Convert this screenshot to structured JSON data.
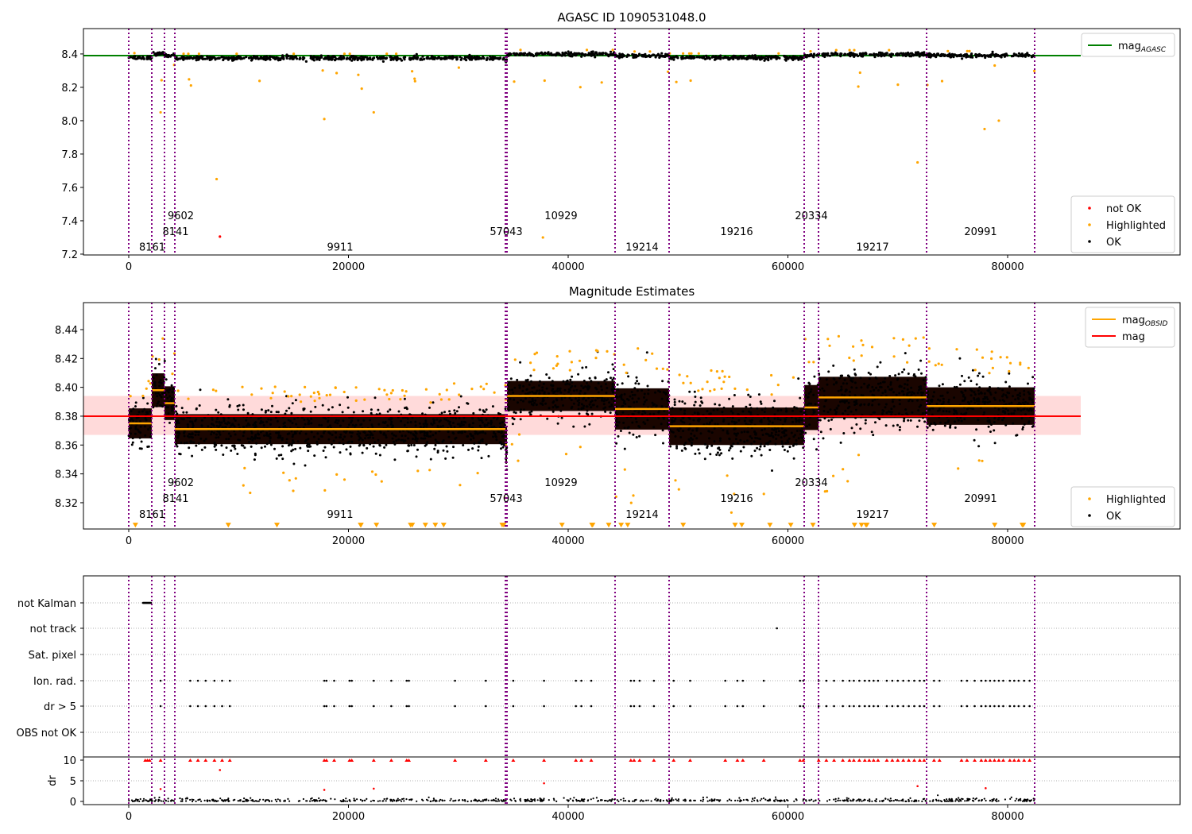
{
  "chart_data": [
    {
      "type": "scatter",
      "title": "AGASC ID 1090531048.0",
      "xlim": [
        -4123,
        95696
      ],
      "ylim": [
        7.195,
        8.552
      ],
      "xticks": [
        "0",
        "20000",
        "40000",
        "60000",
        "80000"
      ],
      "xtick_values": [
        0,
        20000,
        40000,
        60000,
        80000
      ],
      "yticks": [
        "7.2",
        "7.4",
        "7.6",
        "7.8",
        "8.0",
        "8.2",
        "8.4"
      ],
      "ytick_values": [
        7.2,
        7.4,
        7.6,
        7.8,
        8.0,
        8.2,
        8.4
      ],
      "mag_agasc": 8.39,
      "legend_top": [
        {
          "label": "mag",
          "sub": "AGASC",
          "color": "#008000",
          "kind": "line"
        }
      ],
      "legend_bottom": [
        {
          "label": "not OK",
          "color": "#ff0000"
        },
        {
          "label": "Highlighted",
          "color": "#ffa500"
        },
        {
          "label": "OK",
          "color": "#000000"
        }
      ]
    },
    {
      "type": "scatter",
      "title": "Magnitude Estimates",
      "xlim": [
        -4123,
        95696
      ],
      "ylim": [
        8.3018,
        8.4587
      ],
      "xticks": [
        "0",
        "20000",
        "40000",
        "60000",
        "80000"
      ],
      "xtick_values": [
        0,
        20000,
        40000,
        60000,
        80000
      ],
      "yticks": [
        "8.32",
        "8.34",
        "8.36",
        "8.38",
        "8.40",
        "8.42",
        "8.44"
      ],
      "ytick_values": [
        8.32,
        8.34,
        8.36,
        8.38,
        8.4,
        8.42,
        8.44
      ],
      "mag": 8.38,
      "mag_band": [
        8.367,
        8.394
      ],
      "legend_top": [
        {
          "label": "mag",
          "sub": "OBSID",
          "color": "#ffa500",
          "kind": "line"
        },
        {
          "label": "mag",
          "sub": "",
          "color": "#ff0000",
          "kind": "line"
        }
      ],
      "legend_bottom": [
        {
          "label": "Highlighted",
          "color": "#ffa500"
        },
        {
          "label": "OK",
          "color": "#000000"
        }
      ]
    },
    {
      "type": "scatter",
      "title": "",
      "xlim": [
        -4123,
        95696
      ],
      "flag_rows": [
        "not Kalman",
        "not track",
        "Sat. pixel",
        "Ion. rad.",
        "dr > 5",
        "OBS not OK"
      ],
      "dr_ylabel": "dr",
      "dr_ticks": [
        "0",
        "5",
        "10"
      ],
      "dr_tick_values": [
        0,
        5,
        10
      ],
      "xticks": [
        "0",
        "20000",
        "40000",
        "60000",
        "80000"
      ],
      "xtick_values": [
        0,
        20000,
        40000,
        60000,
        80000
      ]
    }
  ],
  "segments": [
    {
      "obsid": "8161",
      "start": 0,
      "end": 2098,
      "mean": 8.375,
      "std": 0.008,
      "level": 0
    },
    {
      "obsid": "8141",
      "start": 2098,
      "end": 3255,
      "mean": 8.398,
      "std": 0.009,
      "level": 1
    },
    {
      "obsid": "9602",
      "start": 3255,
      "end": 4195,
      "mean": 8.389,
      "std": 0.009,
      "level": 2
    },
    {
      "obsid": "9911",
      "start": 4195,
      "end": 34286,
      "mean": 8.371,
      "std": 0.008,
      "level": 0
    },
    {
      "obsid": "57043",
      "start": 34286,
      "end": 34430,
      "mean": 8.36,
      "std": 0.01,
      "level": 1
    },
    {
      "obsid": "10929",
      "start": 34430,
      "end": 44266,
      "mean": 8.394,
      "std": 0.008,
      "level": 2
    },
    {
      "obsid": "19214",
      "start": 44266,
      "end": 49185,
      "mean": 8.385,
      "std": 0.011,
      "level": 0
    },
    {
      "obsid": "19216",
      "start": 49185,
      "end": 61483,
      "mean": 8.373,
      "std": 0.01,
      "level": 1
    },
    {
      "obsid": "20334",
      "start": 61483,
      "end": 62785,
      "mean": 8.386,
      "std": 0.012,
      "level": 2
    },
    {
      "obsid": "19217",
      "start": 62785,
      "end": 72622,
      "mean": 8.393,
      "std": 0.011,
      "level": 0
    },
    {
      "obsid": "20991",
      "start": 72622,
      "end": 82459,
      "mean": 8.387,
      "std": 0.01,
      "level": 1
    }
  ],
  "colors": {
    "ok": "#000000",
    "highlighted": "#ffa500",
    "not_ok": "#ff0000",
    "obs_line": "#800080",
    "agasc": "#008000",
    "mag": "#ff0000"
  }
}
